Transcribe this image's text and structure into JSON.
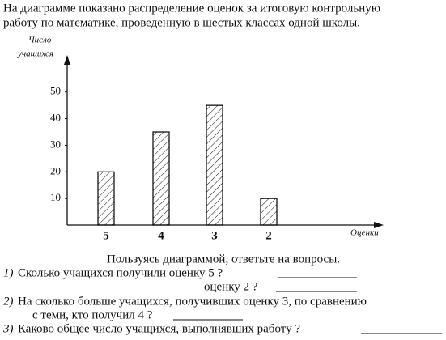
{
  "intro": [
    "На диаграмме показано распределение оценок за итоговую контрольную",
    "работу по математике, проведенную в шестых классах одной школы."
  ],
  "chart_data": {
    "type": "bar",
    "y_label": [
      "Число",
      "учащихся"
    ],
    "x_label": "Оценки",
    "categories": [
      "5",
      "4",
      "3",
      "2"
    ],
    "values": [
      20,
      35,
      45,
      10
    ],
    "color": "#000000",
    "ylim": [
      0,
      63
    ],
    "yticks": [
      10,
      20,
      30,
      40,
      50
    ]
  },
  "prompt": "Пользуясь диаграммой, ответьте на вопросы.",
  "questions": [
    {
      "number": "1)",
      "lines": [
        "Сколько учащихся получили оценку 5 ?",
        "оценку 2 ?"
      ]
    },
    {
      "number": "2)",
      "lines": [
        "На сколько больше учащихся, получивших оценку 3, по сравнению",
        "с теми, кто получил 4 ?"
      ]
    },
    {
      "number": "3)",
      "lines": [
        "Каково общее число учащихся, выполнявших работу ?"
      ]
    }
  ]
}
